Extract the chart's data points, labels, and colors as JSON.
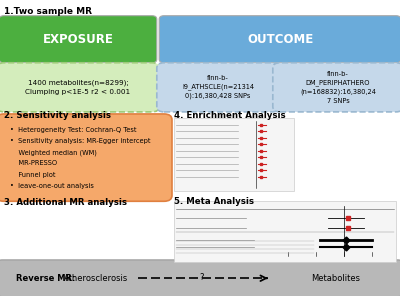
{
  "title": "1.Two sample MR",
  "exposure_label": "EXPOSURE",
  "outcome_label": "OUTCOME",
  "exposure_color": "#4caf3f",
  "outcome_color": "#6aabda",
  "exposure_box_facecolor": "#d4edbc",
  "exposure_box_edgecolor": "#9ecb7a",
  "outcome_box_facecolor": "#c5d8ea",
  "outcome_box_edgecolor": "#9ab8d0",
  "sensitivity_facecolor": "#f5a86a",
  "sensitivity_edgecolor": "#e08040",
  "bottom_bar_facecolor": "#b8b8b8",
  "bottom_bar_edgecolor": "#999999",
  "enrich_bg": "#f5f5f5",
  "meta_bg": "#f5f5f5",
  "section2_label": "2. Sensitivity analysis",
  "section3_label": "3. Additional MR analysis",
  "section4_label": "4. Enrichment Analysis",
  "section5_label": "5. Meta Analysis",
  "exposure_detail": "1400 metabolites(n=8299);\nClumping p<1E-5 r2 < 0.001",
  "outcome1_detail": "finn-b-\nI9_ATHSCLE(n=21314\n0):16,380,428 SNPs",
  "outcome2_detail": "finn-b-\nDM_PERIPHATHERO\n(n=168832):16,380,24\n7 SNPs",
  "sensitivity_lines": [
    "•  Heterogeneity Test: Cochran-Q Test",
    "•  Sensitivity analysis: MR-Egger intercept",
    "    Weighted median (WM)",
    "    MR-PRESSO",
    "    Funnel plot",
    "•  leave-one-out analysis"
  ],
  "reverse_mr_label": "Reverse MR:",
  "atherosclerosis_label": "Atherosclerosis",
  "metabolites_label": "Metabolites",
  "bg_color": "#ffffff"
}
